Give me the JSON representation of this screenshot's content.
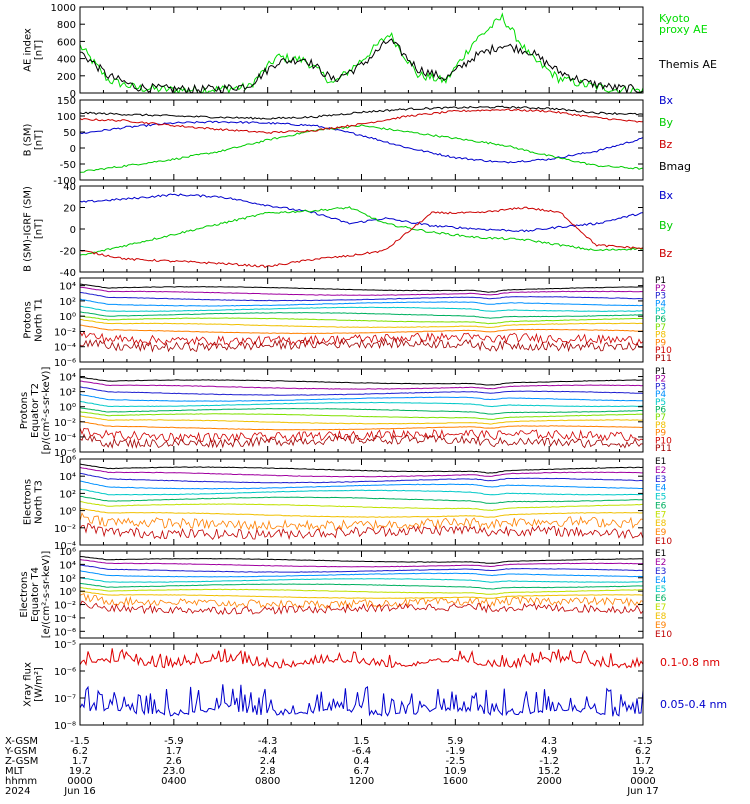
{
  "chart_data": [
    {
      "type": "line",
      "ylabel": [
        "AE index",
        "[nT]"
      ],
      "ylim": [
        0,
        1000
      ],
      "yticks": [
        0,
        200,
        400,
        600,
        800,
        1000
      ],
      "yticklabels": [
        "0",
        "200",
        "400",
        "600",
        "800",
        "1000"
      ],
      "x": [
        0,
        1.2,
        2.4,
        3.6,
        4.8,
        6,
        7.2,
        8.4,
        9.6,
        10.8,
        12,
        13.2,
        14.4,
        15.6,
        16.8,
        18,
        19.2,
        20.4,
        21.6,
        22.8,
        24
      ],
      "series": [
        {
          "name": "Kyoto proxy AE",
          "color": "#00dd00",
          "values": [
            550,
            150,
            60,
            40,
            35,
            45,
            70,
            420,
            380,
            110,
            380,
            690,
            210,
            140,
            600,
            880,
            420,
            170,
            90,
            40,
            30
          ]
        },
        {
          "name": "Themis AE",
          "color": "#000000",
          "values": [
            480,
            200,
            70,
            50,
            40,
            50,
            90,
            360,
            400,
            150,
            320,
            620,
            280,
            170,
            420,
            560,
            480,
            250,
            120,
            60,
            40
          ]
        }
      ]
    },
    {
      "type": "line",
      "ylabel": [
        "B (SM)",
        "[nT]"
      ],
      "ylim": [
        -100,
        150
      ],
      "yticks": [
        -100,
        -50,
        0,
        50,
        100,
        150
      ],
      "yticklabels": [
        "-100",
        "-50",
        "0",
        "50",
        "100",
        "150"
      ],
      "x": [
        0,
        2,
        4,
        6,
        8,
        10,
        12,
        14,
        16,
        18,
        20,
        22,
        24
      ],
      "series": [
        {
          "name": "Bx",
          "color": "#0000cc",
          "values": [
            45,
            65,
            78,
            82,
            78,
            70,
            40,
            0,
            -30,
            -45,
            -35,
            -10,
            30
          ]
        },
        {
          "name": "By",
          "color": "#00cc00",
          "values": [
            -75,
            -55,
            -35,
            -10,
            25,
            55,
            70,
            50,
            30,
            10,
            -25,
            -55,
            -65
          ]
        },
        {
          "name": "Bz",
          "color": "#cc0000",
          "values": [
            90,
            85,
            70,
            58,
            48,
            55,
            75,
            100,
            115,
            120,
            115,
            95,
            80
          ]
        },
        {
          "name": "Bmag",
          "color": "#000000",
          "values": [
            110,
            105,
            100,
            96,
            92,
            97,
            112,
            122,
            126,
            128,
            124,
            110,
            105
          ]
        }
      ]
    },
    {
      "type": "line",
      "ylabel": [
        "B (SM)-IGRF (SM)",
        "[nT]"
      ],
      "ylim": [
        -40,
        40
      ],
      "yticks": [
        -40,
        -20,
        0,
        20,
        40
      ],
      "yticklabels": [
        "-40",
        "-20",
        "0",
        "20",
        "40"
      ],
      "x": [
        0,
        2,
        4,
        6,
        8,
        10,
        11.5,
        13,
        15,
        17,
        19,
        20.5,
        22,
        24
      ],
      "series": [
        {
          "name": "Bx",
          "color": "#0000cc",
          "values": [
            25,
            28,
            32,
            30,
            22,
            15,
            5,
            10,
            3,
            0,
            -2,
            2,
            5,
            15
          ]
        },
        {
          "name": "By",
          "color": "#00cc00",
          "values": [
            -25,
            -15,
            -5,
            5,
            15,
            17,
            20,
            5,
            -3,
            -8,
            -10,
            -15,
            -20,
            -18
          ]
        },
        {
          "name": "Bz",
          "color": "#cc0000",
          "values": [
            -20,
            -28,
            -30,
            -32,
            -35,
            -28,
            -25,
            -20,
            15,
            15,
            20,
            15,
            -15,
            -18
          ]
        }
      ]
    },
    {
      "type": "line",
      "log": true,
      "ylabel": [
        "Protons",
        "North T1"
      ],
      "ylim": [
        -6,
        5
      ],
      "yticks": [
        4,
        2,
        0,
        -2,
        -4,
        -6
      ],
      "yticklabels": [
        "10⁴",
        "10²",
        "10⁰",
        "10⁻²",
        "10⁻⁴",
        "10⁻⁶"
      ],
      "channels": [
        "P1",
        "P2",
        "P3",
        "P4",
        "P5",
        "P6",
        "P7",
        "P8",
        "P9",
        "P10",
        "P11"
      ],
      "colors": [
        "#000000",
        "#a000a0",
        "#2020d0",
        "#0090ff",
        "#00c8c8",
        "#00b060",
        "#80e000",
        "#f0c000",
        "#ff8000",
        "#d00000",
        "#a00000"
      ],
      "levels": [
        3.6,
        3.0,
        2.3,
        1.6,
        0.9,
        0.2,
        -0.5,
        -1.2,
        -2.0,
        -3.0,
        -3.8
      ]
    },
    {
      "type": "line",
      "log": true,
      "ylabel": [
        "Protons",
        "Equator T2",
        "[p/(cm²-s-sr-keV)]"
      ],
      "ylim": [
        -6,
        5
      ],
      "yticks": [
        4,
        2,
        0,
        -2,
        -4,
        -6
      ],
      "yticklabels": [
        "10⁴",
        "10²",
        "10⁰",
        "10⁻²",
        "10⁻⁴",
        "10⁻⁶"
      ],
      "channels": [
        "P1",
        "P2",
        "P3",
        "P4",
        "P5",
        "P6",
        "P7",
        "P8",
        "P9",
        "P10",
        "P11"
      ],
      "colors": [
        "#000000",
        "#a000a0",
        "#2020d0",
        "#0090ff",
        "#00c8c8",
        "#00b060",
        "#80e000",
        "#f0c000",
        "#ff8000",
        "#d00000",
        "#a00000"
      ],
      "levels": [
        3.3,
        2.6,
        1.8,
        1.0,
        0.3,
        -0.5,
        -1.2,
        -2.0,
        -2.8,
        -3.8,
        -4.6
      ]
    },
    {
      "type": "line",
      "log": true,
      "ylabel": [
        "Electrons",
        "North T3"
      ],
      "ylim": [
        -4,
        6
      ],
      "yticks": [
        6,
        4,
        2,
        0,
        -2,
        -4
      ],
      "yticklabels": [
        "10⁶",
        "10⁴",
        "10²",
        "10⁰",
        "10⁻²",
        "10⁻⁴"
      ],
      "channels": [
        "E1",
        "E2",
        "E3",
        "E4",
        "E5",
        "E6",
        "E7",
        "E8",
        "E9",
        "E10"
      ],
      "colors": [
        "#000000",
        "#a000a0",
        "#2020d0",
        "#0090ff",
        "#00c8c8",
        "#00b060",
        "#c0e000",
        "#f0c000",
        "#ff8000",
        "#c00000"
      ],
      "levels": [
        4.8,
        4.2,
        3.5,
        2.8,
        2.1,
        1.3,
        0.5,
        -0.5,
        -1.5,
        -2.5
      ]
    },
    {
      "type": "line",
      "log": true,
      "ylabel": [
        "Electrons",
        "Equator T4",
        "[e/(cm²-s-sr-keV)]"
      ],
      "ylim": [
        -7,
        6
      ],
      "yticks": [
        6,
        4,
        2,
        0,
        -2,
        -4,
        -6
      ],
      "yticklabels": [
        "10⁶",
        "10⁴",
        "10²",
        "10⁰",
        "10⁻²",
        "10⁻⁴",
        "10⁻⁶"
      ],
      "channels": [
        "E1",
        "E2",
        "E3",
        "E4",
        "E5",
        "E6",
        "E7",
        "E8",
        "E9",
        "E10"
      ],
      "colors": [
        "#000000",
        "#a000a0",
        "#2020d0",
        "#0090ff",
        "#00c8c8",
        "#00b060",
        "#c0e000",
        "#f0c000",
        "#ff8000",
        "#c00000"
      ],
      "levels": [
        4.6,
        3.9,
        3.1,
        2.4,
        1.6,
        0.8,
        0.0,
        -0.8,
        -1.7,
        -2.6
      ]
    },
    {
      "type": "line",
      "log": true,
      "ylabel": [
        "Xray flux",
        "[W/m²]"
      ],
      "ylim": [
        -8,
        -5
      ],
      "yticks": [
        -5,
        -6,
        -7,
        -8
      ],
      "yticklabels": [
        "10⁻⁵",
        "10⁻⁶",
        "10⁻⁷",
        "10⁻⁸"
      ],
      "series": [
        {
          "name": "0.1-0.8 nm",
          "color": "#dd0000",
          "level": -5.75
        },
        {
          "name": "0.05-0.4 nm",
          "color": "#0000cc",
          "level": -7.55
        }
      ]
    }
  ],
  "x_axis": {
    "ticks": [
      0,
      4,
      8,
      12,
      16,
      20,
      24
    ],
    "row_labels": [
      "X-GSM",
      "Y-GSM",
      "Z-GSM",
      "MLT",
      "hhmm",
      "2024"
    ],
    "rows": [
      [
        "-1.5",
        "-5.9",
        "-4.3",
        "1.5",
        "5.9",
        "4.3",
        "-1.5"
      ],
      [
        "6.2",
        "1.7",
        "-4.4",
        "-6.4",
        "-1.9",
        "4.9",
        "6.2"
      ],
      [
        "1.7",
        "2.6",
        "2.4",
        "0.4",
        "-2.5",
        "-1.2",
        "1.7"
      ],
      [
        "19.2",
        "23.0",
        "2.8",
        "6.7",
        "10.9",
        "15.2",
        "19.2"
      ],
      [
        "0000",
        "0400",
        "0800",
        "1200",
        "1600",
        "2000",
        "0000"
      ],
      [
        "Jun 16",
        "",
        "",
        "",
        "",
        "",
        "Jun 17"
      ]
    ]
  },
  "legends": [
    {
      "items": [
        {
          "label": "Kyoto\nproxy AE",
          "color": "#00dd00"
        },
        {
          "label": "Themis AE",
          "color": "#000000"
        }
      ]
    },
    {
      "items": [
        {
          "label": "Bx",
          "color": "#0000cc"
        },
        {
          "label": "By",
          "color": "#00cc00"
        },
        {
          "label": "Bz",
          "color": "#cc0000"
        },
        {
          "label": "Bmag",
          "color": "#000000"
        }
      ]
    },
    {
      "items": [
        {
          "label": "Bx",
          "color": "#0000cc"
        },
        {
          "label": "By",
          "color": "#00cc00"
        },
        {
          "label": "Bz",
          "color": "#cc0000"
        }
      ]
    }
  ]
}
